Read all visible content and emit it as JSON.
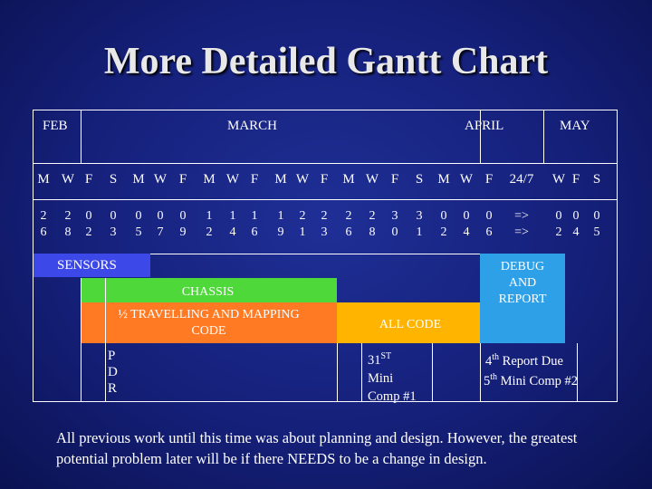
{
  "title": "More Detailed Gantt Chart",
  "months": [
    "FEB",
    "MARCH",
    "APRIL",
    "MAY"
  ],
  "weekdays": [
    "M",
    "W",
    "F",
    "S",
    "M",
    "W",
    "F",
    "M",
    "W",
    "F",
    "M",
    "W",
    "F",
    "M",
    "W",
    "F",
    "S",
    "M",
    "W",
    "F",
    "24/7",
    "W",
    "F",
    "S"
  ],
  "dates": [
    [
      "2",
      "6"
    ],
    [
      "2",
      "8"
    ],
    [
      "0",
      "2"
    ],
    [
      "0",
      "3"
    ],
    [
      "0",
      "5"
    ],
    [
      "0",
      "7"
    ],
    [
      "0",
      "9"
    ],
    [
      "1",
      "2"
    ],
    [
      "1",
      "4"
    ],
    [
      "1",
      "6"
    ],
    [
      "1",
      "9"
    ],
    [
      "2",
      "1"
    ],
    [
      "2",
      "3"
    ],
    [
      "2",
      "6"
    ],
    [
      "2",
      "8"
    ],
    [
      "3",
      "0"
    ],
    [
      "3",
      "1"
    ],
    [
      "0",
      "2"
    ],
    [
      "0",
      "4"
    ],
    [
      "0",
      "6"
    ],
    [
      "=>",
      "=>"
    ],
    [
      "0",
      "2"
    ],
    [
      "0",
      "4"
    ],
    [
      "0",
      "5"
    ]
  ],
  "tasks": {
    "sensors": "SENSORS",
    "chassis": "CHASSIS",
    "travelling": "½ TRAVELLING AND MAPPING CODE",
    "all_code": "ALL CODE",
    "debug": "DEBUG AND REPORT",
    "pdr": [
      "P",
      "D",
      "R"
    ],
    "mini1": [
      "31ST",
      "Mini",
      "Comp #1"
    ],
    "report4": "4th Report Due",
    "mini2": "5th Mini Comp #2"
  },
  "colors": {
    "sensors": "#3c48e8",
    "chassis": "#4fd83a",
    "travelling": "#ff7a22",
    "all_code": "#ffb400",
    "debug": "#2ea0e8"
  },
  "footer": "All previous work until this time was about planning and design. However, the greatest potential problem later will be if there NEEDS to be a change in design."
}
